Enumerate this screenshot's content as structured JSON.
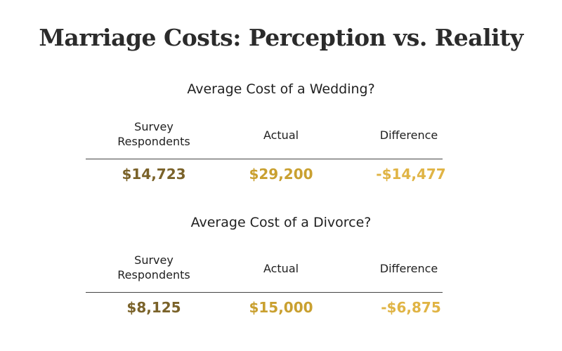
{
  "title": "Marriage Costs: Perception vs. Reality",
  "colors": {
    "survey": "#7a6229",
    "actual": "#c9a030",
    "difference": "#e0b445"
  },
  "chart_data": [
    {
      "type": "table",
      "title": "Average Cost of a Wedding?",
      "columns": [
        "Survey\nRespondents",
        "Actual",
        "Difference"
      ],
      "values": [
        "$14,723",
        "$29,200",
        "-$14,477"
      ]
    },
    {
      "type": "table",
      "title": "Average Cost of a Divorce?",
      "columns": [
        "Survey\nRespondents",
        "Actual",
        "Difference"
      ],
      "values": [
        "$8,125",
        "$15,000",
        "-$6,875"
      ]
    }
  ]
}
